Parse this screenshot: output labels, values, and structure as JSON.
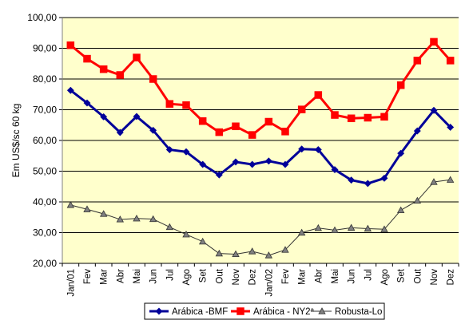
{
  "chart_data": {
    "type": "line",
    "ylabel": "Em US$/sc 60 kg",
    "ylim": [
      20,
      100
    ],
    "yticks": [
      "20,00",
      "30,00",
      "40,00",
      "50,00",
      "60,00",
      "70,00",
      "80,00",
      "90,00",
      "100,00"
    ],
    "categories": [
      "Jan/01",
      "Fev",
      "Mar",
      "Abr",
      "Mai",
      "Jun",
      "Jul",
      "Ago",
      "Set",
      "Out",
      "Nov",
      "Dez",
      "Jan/02",
      "Fev",
      "Mar",
      "Abr",
      "Mai",
      "Jun",
      "Jul",
      "Ago",
      "Set",
      "Out",
      "Nov",
      "Dez"
    ],
    "grid": true,
    "plot_background": "#FFFFCC",
    "legend_position": "bottom",
    "series": [
      {
        "name": "Arábica -BMF",
        "color": "#000099",
        "marker": "diamond",
        "values": [
          76.3,
          72.2,
          67.7,
          62.6,
          67.8,
          63.3,
          57.0,
          56.3,
          52.2,
          48.8,
          53.0,
          52.2,
          53.3,
          52.2,
          57.2,
          57.0,
          50.5,
          47.1,
          46.0,
          47.7,
          55.8,
          63.1,
          69.8,
          64.3
        ]
      },
      {
        "name": "Arábica - NY2ª",
        "color": "#FF0000",
        "marker": "square",
        "values": [
          91.0,
          86.6,
          83.2,
          81.3,
          87.0,
          80.0,
          71.9,
          71.5,
          66.3,
          62.7,
          64.6,
          61.8,
          66.1,
          62.9,
          70.1,
          74.8,
          68.3,
          67.2,
          67.4,
          67.7,
          78.0,
          86.0,
          92.1,
          86.0
        ]
      },
      {
        "name": "Robusta-Lo",
        "color": "#333333",
        "marker": "triangle",
        "values": [
          39.0,
          37.6,
          36.1,
          34.3,
          34.6,
          34.4,
          31.8,
          29.4,
          27.1,
          23.2,
          23.0,
          23.9,
          22.6,
          24.4,
          30.0,
          31.5,
          30.8,
          31.6,
          31.3,
          31.1,
          37.3,
          40.4,
          46.5,
          47.2
        ]
      }
    ]
  }
}
